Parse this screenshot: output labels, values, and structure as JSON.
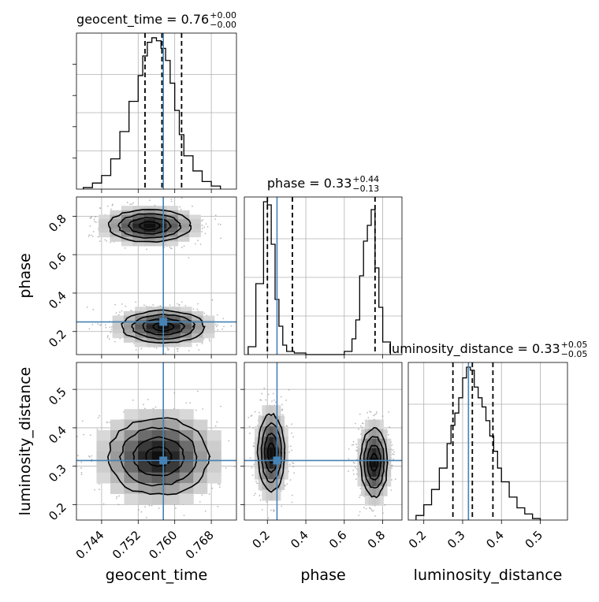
{
  "chart_data": {
    "type": "corner",
    "parameters": [
      "geocent_time",
      "phase",
      "luminosity_distance"
    ],
    "truth": {
      "geocent_time": 0.7575,
      "phase": 0.25,
      "luminosity_distance": 0.315
    },
    "truth_color": "#4682b4",
    "grid": true,
    "panels": {
      "geocent_time": {
        "title_value": "0.76",
        "title_plus": "+0.00",
        "title_minus": "−0.00",
        "quantiles": [
          0.7535,
          0.7572,
          0.7615
        ],
        "range": [
          0.7385,
          0.7735
        ],
        "ticks": [
          0.744,
          0.752,
          0.76,
          0.768
        ],
        "tick_labels": [
          "0.744",
          "0.752",
          "0.760",
          "0.768"
        ],
        "hist": {
          "edges": [
            0.74,
            0.742,
            0.744,
            0.746,
            0.748,
            0.75,
            0.752,
            0.753,
            0.754,
            0.755,
            0.756,
            0.757,
            0.758,
            0.759,
            0.76,
            0.761,
            0.762,
            0.764,
            0.766,
            0.768,
            0.77
          ],
          "heights": [
            0.01,
            0.04,
            0.09,
            0.2,
            0.38,
            0.58,
            0.75,
            0.88,
            0.97,
            1.0,
            0.98,
            0.93,
            0.85,
            0.7,
            0.52,
            0.36,
            0.22,
            0.12,
            0.05,
            0.02
          ]
        }
      },
      "phase": {
        "title_value": "0.33",
        "title_plus": "+0.44",
        "title_minus": "−0.13",
        "quantiles": [
          0.2,
          0.33,
          0.76
        ],
        "range": [
          0.08,
          0.9
        ],
        "ticks": [
          0.2,
          0.4,
          0.6,
          0.8
        ],
        "tick_labels": [
          "0.2",
          "0.4",
          "0.6",
          "0.8"
        ],
        "hist": {
          "edges": [
            0.1,
            0.14,
            0.18,
            0.2,
            0.22,
            0.24,
            0.26,
            0.28,
            0.3,
            0.34,
            0.4,
            0.5,
            0.6,
            0.64,
            0.66,
            0.68,
            0.7,
            0.72,
            0.74,
            0.76,
            0.78,
            0.8,
            0.84
          ],
          "heights": [
            0.05,
            0.45,
            0.97,
            0.95,
            0.7,
            0.35,
            0.18,
            0.06,
            0.02,
            0.01,
            0.0,
            0.0,
            0.02,
            0.1,
            0.22,
            0.5,
            0.72,
            0.82,
            0.92,
            0.55,
            0.3,
            0.08
          ]
        }
      },
      "luminosity_distance": {
        "title_value": "0.33",
        "title_plus": "+0.05",
        "title_minus": "−0.05",
        "quantiles": [
          0.275,
          0.325,
          0.378
        ],
        "range": [
          0.16,
          0.57
        ],
        "ticks": [
          0.2,
          0.3,
          0.4,
          0.5
        ],
        "tick_labels": [
          "0.2",
          "0.3",
          "0.4",
          "0.5"
        ],
        "hist": {
          "edges": [
            0.18,
            0.2,
            0.22,
            0.24,
            0.26,
            0.27,
            0.28,
            0.29,
            0.3,
            0.31,
            0.32,
            0.33,
            0.34,
            0.35,
            0.36,
            0.37,
            0.38,
            0.39,
            0.4,
            0.42,
            0.44,
            0.46,
            0.48,
            0.5
          ],
          "heights": [
            0.03,
            0.1,
            0.2,
            0.34,
            0.5,
            0.62,
            0.7,
            0.8,
            0.93,
            1.0,
            0.98,
            0.87,
            0.8,
            0.74,
            0.65,
            0.55,
            0.45,
            0.34,
            0.25,
            0.15,
            0.08,
            0.04,
            0.01
          ]
        }
      }
    },
    "pairs": [
      {
        "x": "geocent_time",
        "y": "phase",
        "blobs": [
          {
            "cx": 0.7545,
            "cy": 0.75,
            "sx": 0.0045,
            "sy": 0.042
          },
          {
            "cx": 0.7575,
            "cy": 0.225,
            "sx": 0.0045,
            "sy": 0.042
          }
        ]
      },
      {
        "x": "geocent_time",
        "y": "luminosity_distance",
        "blobs": [
          {
            "cx": 0.7565,
            "cy": 0.325,
            "sx": 0.0055,
            "sy": 0.05
          }
        ]
      },
      {
        "x": "phase",
        "y": "luminosity_distance",
        "blobs": [
          {
            "cx": 0.22,
            "cy": 0.335,
            "sx": 0.035,
            "sy": 0.05
          },
          {
            "cx": 0.755,
            "cy": 0.31,
            "sx": 0.035,
            "sy": 0.045
          }
        ]
      }
    ]
  }
}
